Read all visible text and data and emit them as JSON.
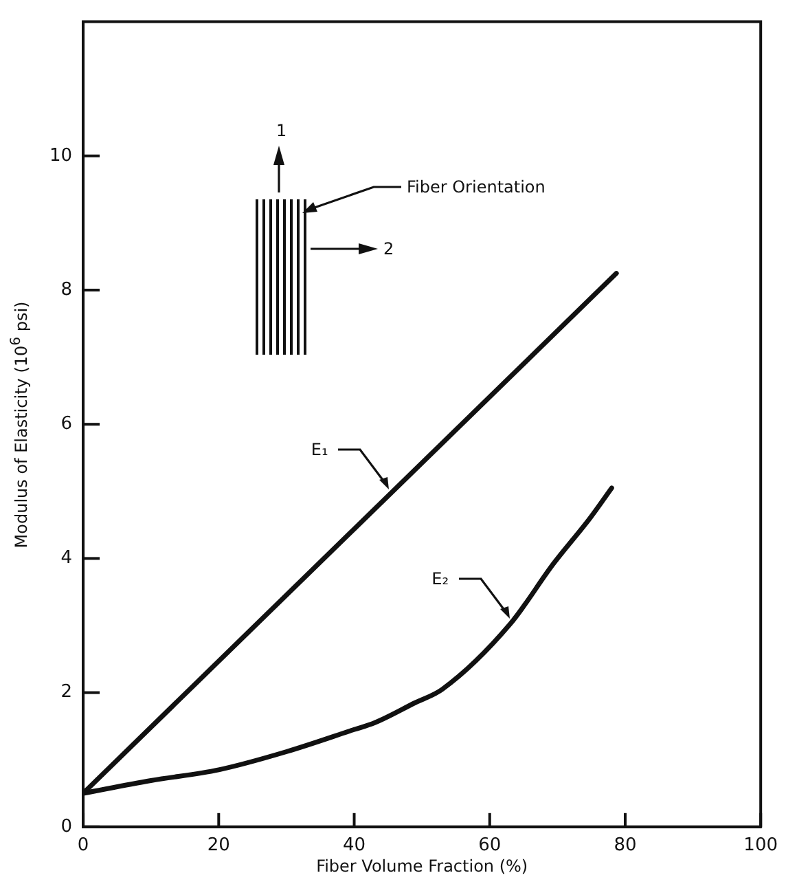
{
  "chart_data": {
    "type": "line",
    "xlabel": "Fiber Volume Fraction (%)",
    "ylabel": "Modulus of Elasticity (10$^{6}$ psi)",
    "xlim": [
      0,
      100
    ],
    "xticks": [
      0,
      20,
      40,
      60,
      80,
      100
    ],
    "ylim": [
      0,
      12
    ],
    "yticks": [
      0,
      2,
      4,
      6,
      8,
      10
    ],
    "grid": false,
    "marker": "none",
    "line_style": "solid",
    "series": [
      {
        "color": "#111111",
        "x": [
          0,
          78.7
        ],
        "values": [
          0.5,
          8.25
        ]
      },
      {
        "color": "#111111",
        "x": [
          0,
          10,
          20,
          30,
          40,
          43,
          49,
          53,
          63,
          69.4,
          74.8,
          78
        ],
        "values": [
          0.5,
          0.69,
          0.85,
          1.12,
          1.45,
          1.55,
          1.85,
          2.05,
          3.02,
          3.92,
          4.6,
          5.05
        ]
      }
    ],
    "annotations": [
      {
        "text": "E₁",
        "x": 45.4,
        "y": 5.0
      },
      {
        "text": "E₂",
        "x": 63.2,
        "y": 3.09
      },
      "Fiber Orientation",
      "1",
      "2"
    ]
  }
}
